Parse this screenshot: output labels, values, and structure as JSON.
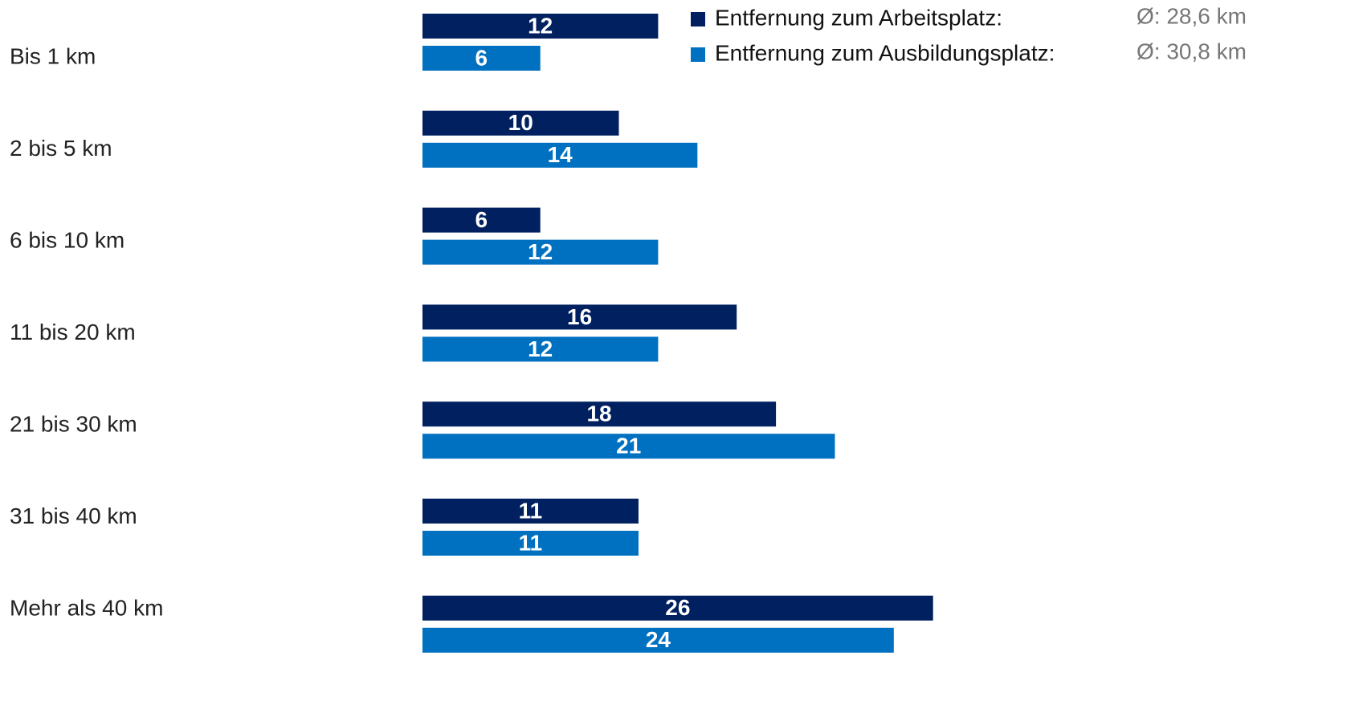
{
  "chart_data": {
    "type": "bar",
    "orientation": "horizontal",
    "categories": [
      "Bis 1 km",
      "2 bis 5 km",
      "6 bis 10 km",
      "11 bis 20 km",
      "21 bis 30 km",
      "31 bis 40 km",
      "Mehr als 40 km"
    ],
    "series": [
      {
        "name": "Entfernung zum Arbeitsplatz:",
        "color": "#002060",
        "values": [
          12,
          10,
          6,
          16,
          18,
          11,
          26
        ]
      },
      {
        "name": "Entfernung zum Ausbildungsplatz:",
        "color": "#0070c0",
        "values": [
          6,
          14,
          12,
          12,
          21,
          11,
          24
        ]
      }
    ],
    "annotations": [
      "Ø: 28,6 km",
      "Ø: 30,8 km"
    ],
    "legend": "top-right"
  }
}
